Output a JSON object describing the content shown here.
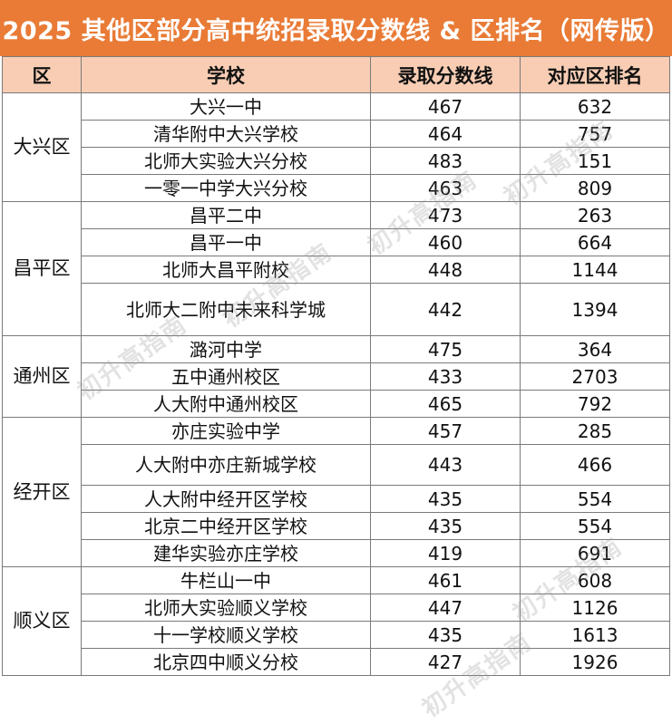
{
  "title": "2025 其他区部分高中统招录取分数线 & 区排名（网传版）",
  "headers": {
    "district": "区",
    "school": "学校",
    "score": "录取分数线",
    "rank": "对应区排名"
  },
  "watermark": "初升高指南",
  "districts": [
    {
      "name": "大兴区",
      "rows": [
        {
          "school": "大兴一中",
          "score": "467",
          "rank": "632"
        },
        {
          "school": "清华附中大兴学校",
          "score": "464",
          "rank": "757"
        },
        {
          "school": "北师大实验大兴分校",
          "score": "483",
          "rank": "151"
        },
        {
          "school": "一零一中学大兴分校",
          "score": "463",
          "rank": "809"
        }
      ]
    },
    {
      "name": "昌平区",
      "rows": [
        {
          "school": "昌平二中",
          "score": "473",
          "rank": "263"
        },
        {
          "school": "昌平一中",
          "score": "460",
          "rank": "664"
        },
        {
          "school": "北师大昌平附校",
          "score": "448",
          "rank": "1144"
        },
        {
          "school": "北师大二附中未来科学城",
          "score": "442",
          "rank": "1394"
        }
      ]
    },
    {
      "name": "通州区",
      "rows": [
        {
          "school": "潞河中学",
          "score": "475",
          "rank": "364"
        },
        {
          "school": "五中通州校区",
          "score": "433",
          "rank": "2703"
        },
        {
          "school": "人大附中通州校区",
          "score": "465",
          "rank": "792"
        }
      ]
    },
    {
      "name": "经开区",
      "rows": [
        {
          "school": "亦庄实验中学",
          "score": "457",
          "rank": "285"
        },
        {
          "school": "人大附中亦庄新城学校",
          "score": "443",
          "rank": "466"
        },
        {
          "school": "人大附中经开区学校",
          "score": "435",
          "rank": "554"
        },
        {
          "school": "北京二中经开区学校",
          "score": "435",
          "rank": "554"
        },
        {
          "school": "建华实验亦庄学校",
          "score": "419",
          "rank": "691"
        }
      ]
    },
    {
      "name": "顺义区",
      "rows": [
        {
          "school": "牛栏山一中",
          "score": "461",
          "rank": "608"
        },
        {
          "school": "北师大实验顺义学校",
          "score": "447",
          "rank": "1126"
        },
        {
          "school": "十一学校顺义学校",
          "score": "435",
          "rank": "1613"
        },
        {
          "school": "北京四中顺义分校",
          "score": "427",
          "rank": "1926"
        }
      ]
    }
  ]
}
